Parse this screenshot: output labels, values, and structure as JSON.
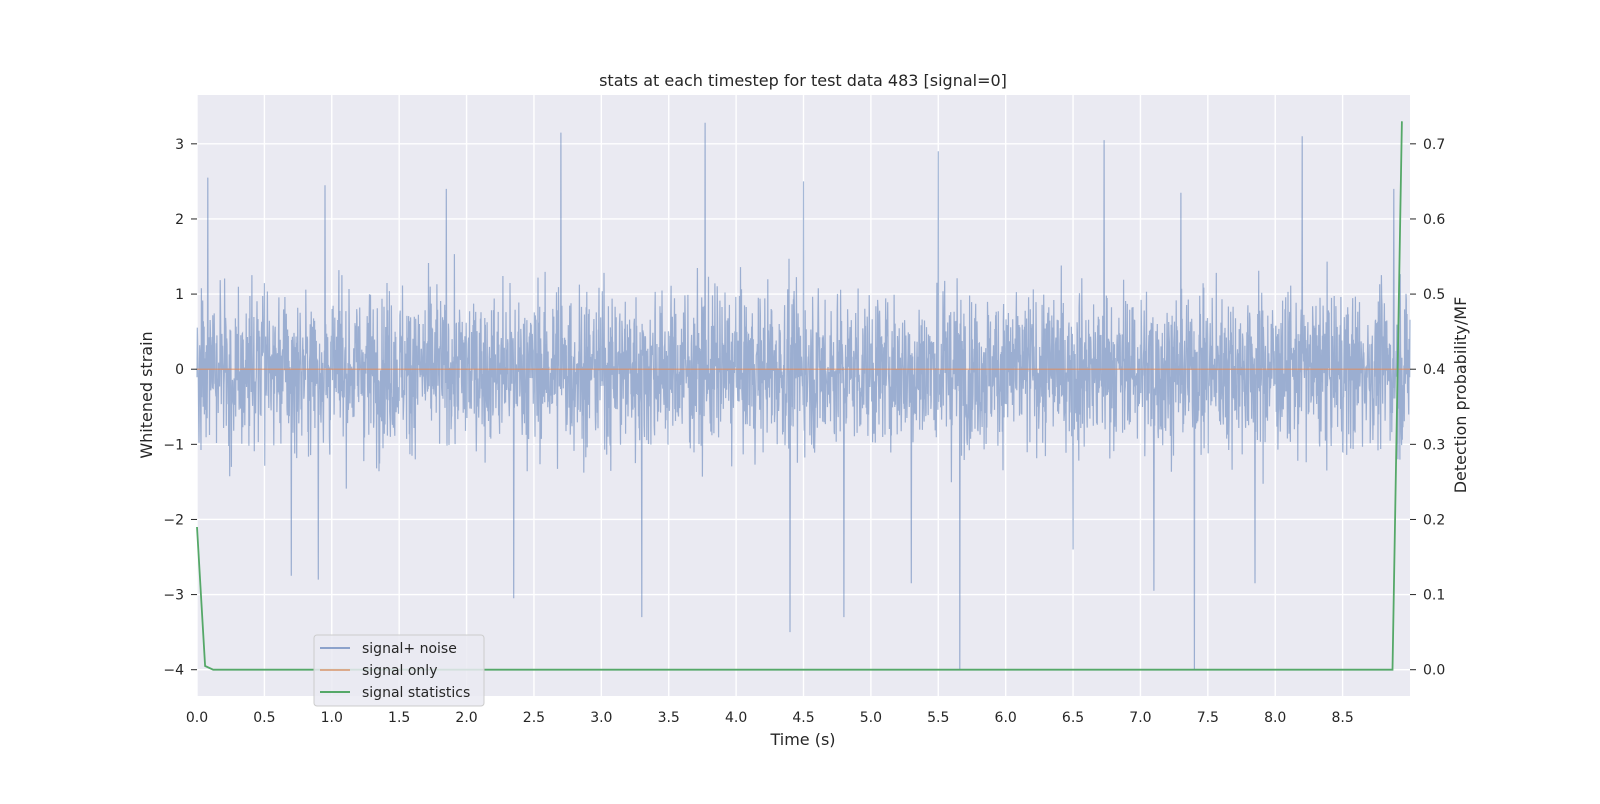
{
  "chart_data": {
    "type": "line",
    "title": "stats at each timestep for test data 483 [signal=0]",
    "xlabel": "Time (s)",
    "ylabel": "Whitened strain",
    "y2label": "Detection probability/MF",
    "xlim": [
      0.0,
      9.0
    ],
    "ylim": [
      -4.35,
      3.65
    ],
    "y2lim": [
      -0.035,
      0.765
    ],
    "x_ticks": [
      "0.0",
      "0.5",
      "1.0",
      "1.5",
      "2.0",
      "2.5",
      "3.0",
      "3.5",
      "4.0",
      "4.5",
      "5.0",
      "5.5",
      "6.0",
      "6.5",
      "7.0",
      "7.5",
      "8.0",
      "8.5"
    ],
    "x_tick_values": [
      0.0,
      0.5,
      1.0,
      1.5,
      2.0,
      2.5,
      3.0,
      3.5,
      4.0,
      4.5,
      5.0,
      5.5,
      6.0,
      6.5,
      7.0,
      7.5,
      8.0,
      8.5
    ],
    "y_ticks": [
      "−4",
      "−3",
      "−2",
      "−1",
      "0",
      "1",
      "2",
      "3"
    ],
    "y_tick_values": [
      -4,
      -3,
      -2,
      -1,
      0,
      1,
      2,
      3
    ],
    "y2_ticks": [
      "0.0",
      "0.1",
      "0.2",
      "0.3",
      "0.4",
      "0.5",
      "0.6",
      "0.7"
    ],
    "y2_tick_values": [
      0.0,
      0.1,
      0.2,
      0.3,
      0.4,
      0.5,
      0.6,
      0.7
    ],
    "grid": true,
    "legend_position": "lower-left",
    "series": [
      {
        "name": "signal+ noise",
        "axis": "left",
        "color": "#4c72b0",
        "kind": "dense noise trace, most samples within about −1.6 to +1.6",
        "peaks": [
          {
            "x": 0.08,
            "y": 2.55
          },
          {
            "x": 0.95,
            "y": 2.45
          },
          {
            "x": 1.85,
            "y": 2.4
          },
          {
            "x": 2.7,
            "y": 3.15
          },
          {
            "x": 3.77,
            "y": 3.28
          },
          {
            "x": 4.5,
            "y": 2.5
          },
          {
            "x": 5.5,
            "y": 2.9
          },
          {
            "x": 6.73,
            "y": 3.05
          },
          {
            "x": 7.3,
            "y": 2.35
          },
          {
            "x": 8.2,
            "y": 3.1
          },
          {
            "x": 8.88,
            "y": 2.4
          }
        ],
        "troughs": [
          {
            "x": 0.7,
            "y": -2.75
          },
          {
            "x": 0.9,
            "y": -2.8
          },
          {
            "x": 2.35,
            "y": -3.05
          },
          {
            "x": 3.3,
            "y": -3.3
          },
          {
            "x": 4.4,
            "y": -3.5
          },
          {
            "x": 4.8,
            "y": -3.3
          },
          {
            "x": 5.3,
            "y": -2.85
          },
          {
            "x": 5.66,
            "y": -4.0
          },
          {
            "x": 6.5,
            "y": -2.4
          },
          {
            "x": 7.1,
            "y": -2.95
          },
          {
            "x": 7.4,
            "y": -4.0
          },
          {
            "x": 7.85,
            "y": -2.85
          }
        ]
      },
      {
        "name": "signal only",
        "axis": "left",
        "color": "#dd8452",
        "x": [
          0.0,
          9.0
        ],
        "y": [
          0.0,
          0.0
        ]
      },
      {
        "name": "signal statistics",
        "axis": "right",
        "color": "#55a868",
        "x": [
          0.0,
          0.06,
          0.12,
          8.87,
          8.94
        ],
        "y": [
          0.19,
          0.005,
          0.0,
          0.0,
          0.73
        ]
      }
    ]
  }
}
